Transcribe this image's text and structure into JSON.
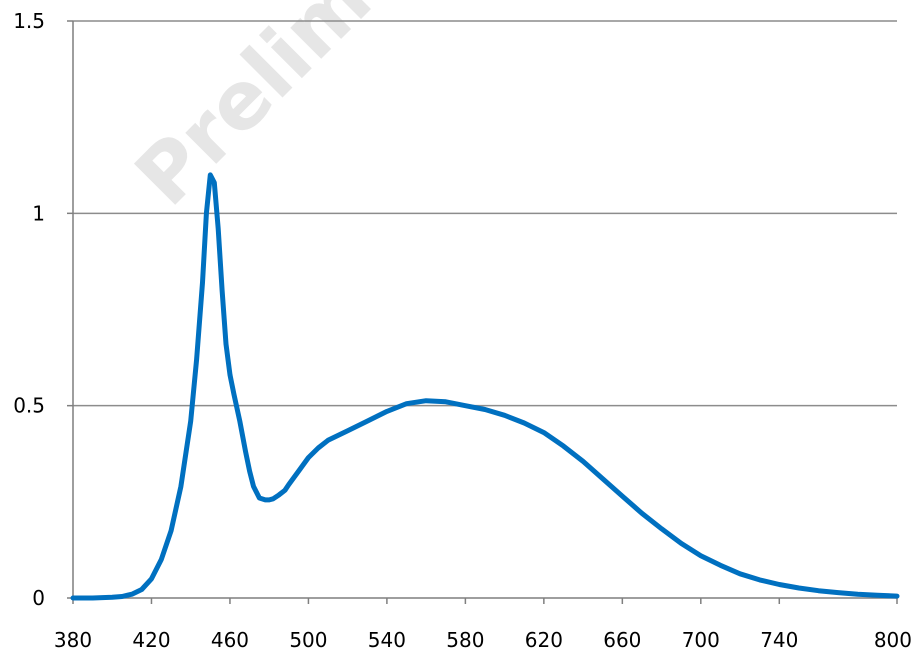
{
  "watermark": "Prelim",
  "colors": {
    "line": "#0070c0",
    "grid": "#8c8c8c",
    "axis": "#7f7f7f",
    "watermark": "#e6e6e6"
  },
  "chart_data": {
    "type": "line",
    "title": "",
    "xlabel": "",
    "ylabel": "",
    "xlim": [
      380,
      800
    ],
    "ylim": [
      0,
      1.5
    ],
    "xticks": [
      "380",
      "420",
      "460",
      "500",
      "540",
      "580",
      "620",
      "660",
      "700",
      "740",
      "800"
    ],
    "xtick_values": [
      380,
      420,
      460,
      500,
      540,
      580,
      620,
      660,
      700,
      740,
      800
    ],
    "yticks": [
      "0",
      "0.5",
      "1",
      "1.5"
    ],
    "ytick_values": [
      0,
      0.5,
      1,
      1.5
    ],
    "grid": "horizontal",
    "legend": "none",
    "series": [
      {
        "x": [
          380,
          390,
          400,
          405,
          410,
          415,
          420,
          425,
          430,
          435,
          440,
          443,
          446,
          448,
          450,
          452,
          454,
          456,
          458,
          460,
          462,
          465,
          468,
          470,
          472,
          475,
          478,
          480,
          482,
          485,
          488,
          490,
          495,
          500,
          505,
          510,
          520,
          530,
          540,
          550,
          560,
          570,
          580,
          590,
          600,
          610,
          620,
          630,
          640,
          650,
          660,
          670,
          680,
          690,
          700,
          710,
          720,
          730,
          740,
          750,
          760,
          770,
          780,
          790,
          800
        ],
        "y": [
          0.0,
          0.0,
          0.002,
          0.004,
          0.01,
          0.022,
          0.05,
          0.1,
          0.175,
          0.29,
          0.46,
          0.62,
          0.82,
          1.0,
          1.1,
          1.08,
          0.96,
          0.8,
          0.66,
          0.58,
          0.53,
          0.46,
          0.38,
          0.33,
          0.29,
          0.26,
          0.255,
          0.255,
          0.258,
          0.268,
          0.28,
          0.295,
          0.33,
          0.365,
          0.39,
          0.41,
          0.435,
          0.46,
          0.485,
          0.505,
          0.513,
          0.51,
          0.5,
          0.49,
          0.475,
          0.455,
          0.43,
          0.395,
          0.355,
          0.31,
          0.265,
          0.22,
          0.18,
          0.142,
          0.11,
          0.085,
          0.063,
          0.047,
          0.035,
          0.026,
          0.019,
          0.014,
          0.01,
          0.007,
          0.005
        ]
      }
    ]
  }
}
